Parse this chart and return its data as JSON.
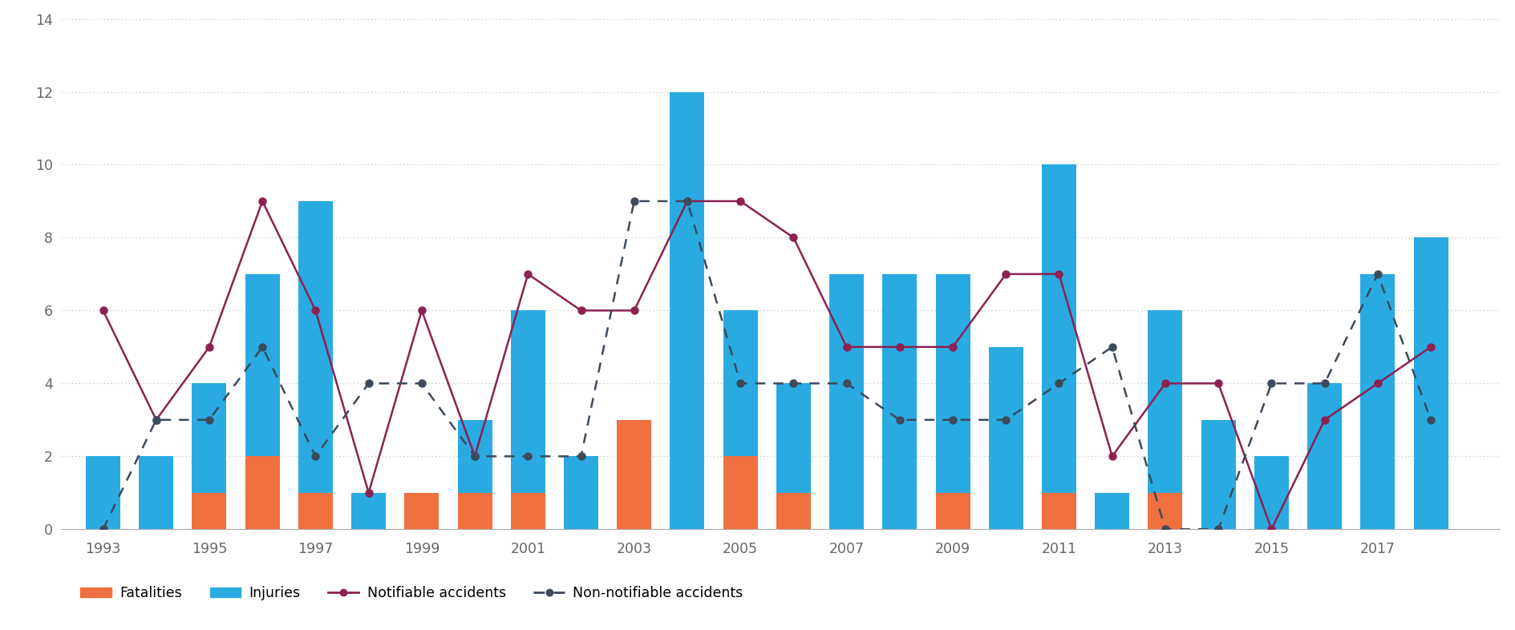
{
  "years": [
    1993,
    1994,
    1995,
    1996,
    1997,
    1998,
    1999,
    2000,
    2001,
    2002,
    2003,
    2004,
    2005,
    2006,
    2007,
    2008,
    2009,
    2010,
    2011,
    2012,
    2013,
    2014,
    2015,
    2016,
    2017,
    2018
  ],
  "fatalities": [
    0,
    0,
    1,
    2,
    1,
    0,
    1,
    1,
    1,
    0,
    3,
    0,
    2,
    1,
    0,
    0,
    1,
    0,
    1,
    0,
    1,
    0,
    0,
    0,
    0,
    0
  ],
  "injuries": [
    2,
    2,
    4,
    7,
    9,
    1,
    0,
    3,
    6,
    2,
    2,
    12,
    6,
    4,
    7,
    7,
    7,
    5,
    10,
    1,
    6,
    3,
    2,
    4,
    7,
    8
  ],
  "notifiable": [
    6,
    3,
    5,
    9,
    6,
    1,
    6,
    2,
    7,
    6,
    6,
    9,
    9,
    8,
    5,
    5,
    5,
    7,
    7,
    2,
    4,
    4,
    0,
    3,
    4,
    5
  ],
  "non_notifiable": [
    0,
    3,
    3,
    5,
    2,
    4,
    4,
    2,
    2,
    2,
    9,
    9,
    4,
    4,
    4,
    3,
    3,
    3,
    4,
    5,
    0,
    0,
    4,
    4,
    7,
    3
  ],
  "bar_color_fatalities": "#f07040",
  "bar_color_injuries": "#29abe2",
  "line_color_notifiable": "#8b2252",
  "line_color_non_notifiable": "#3d4a5c",
  "background_color": "#ffffff",
  "legend_labels": [
    "Fatalities",
    "Injuries",
    "Notifiable accidents",
    "Non-notifiable accidents"
  ],
  "ylim": [
    0,
    14
  ],
  "yticks": [
    0,
    2,
    4,
    6,
    8,
    10,
    12,
    14
  ],
  "grid_color": "#bbbbbb",
  "tick_label_color": "#666666"
}
